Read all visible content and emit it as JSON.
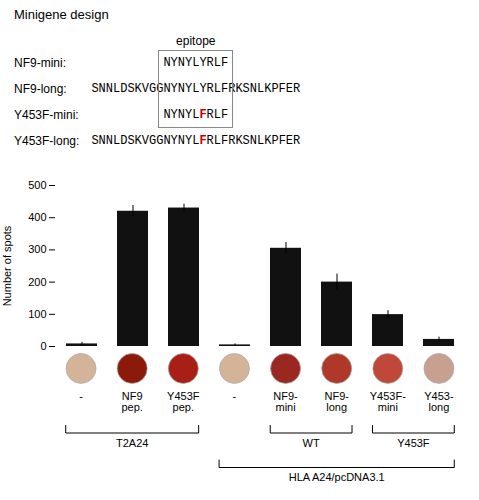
{
  "chart_data": {
    "type": "bar",
    "categories": [
      "-",
      "NF9\npep.",
      "Y453F\npep.",
      "-",
      "NF9-\nmini",
      "NF9-\nlong",
      "Y453F-\nmini",
      "Y453-\nlong"
    ],
    "values": [
      8,
      420,
      430,
      5,
      305,
      200,
      99,
      22
    ],
    "errors": [
      5,
      18,
      12,
      3,
      18,
      25,
      12,
      7
    ],
    "color": "#111111",
    "ylabel": "Number of spots",
    "ylim": [
      0,
      500
    ],
    "yticks": [
      0,
      100,
      200,
      300,
      400,
      500
    ],
    "background": "#ffffff",
    "wells": {
      "colors": [
        "#d4b498",
        "#8b1a0a",
        "#a82015",
        "#d4b498",
        "#9b2820",
        "#b03828",
        "#c04838",
        "#c8a090"
      ],
      "border": "#aaaaaa"
    },
    "groups": [
      {
        "label": "T2A24",
        "first": 0,
        "last": 2
      },
      {
        "label": "WT",
        "first": 4,
        "last": 5
      },
      {
        "label": "Y453F",
        "first": 6,
        "last": 7
      },
      {
        "label": "HLA A24/pcDNA3.1",
        "first": 3,
        "last": 7
      }
    ],
    "minigene": {
      "title": "Minigene design",
      "epitope_label": "epitope",
      "box_color": "#888888",
      "rows": [
        {
          "label": "NF9-mini:",
          "epitope": [
            "NYNYLYRLF"
          ]
        },
        {
          "label": "NF9-long:",
          "prefix": "SNNLDSKVGG",
          "epitope": [
            "NYNYLYRLF"
          ],
          "suffix": "RKSNLKPFER"
        },
        {
          "label": "Y453F-mini:",
          "epitope": [
            "NYNYL",
            {
              "text": "F",
              "color": "#cc0000"
            },
            "RLF"
          ]
        },
        {
          "label": "Y453F-long:",
          "prefix": "SNNLDSKVGG",
          "epitope": [
            "NYNYL",
            {
              "text": "F",
              "color": "#cc0000"
            },
            "RLF"
          ],
          "suffix": "RKSNLKPFER"
        }
      ],
      "boxed_rows": [
        0,
        1,
        2
      ]
    }
  }
}
